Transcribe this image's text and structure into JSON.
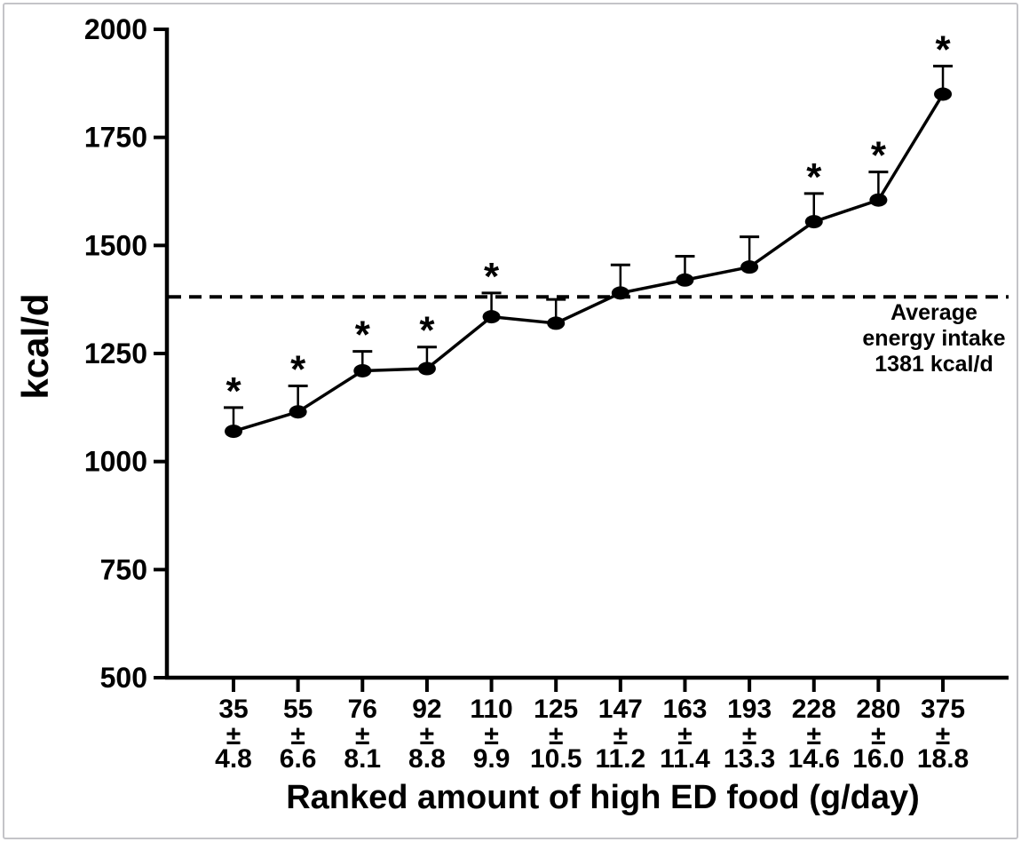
{
  "chart_data": {
    "type": "line",
    "title": "",
    "xlabel": "Ranked amount of high ED food (g/day)",
    "ylabel": "kcal/d",
    "ylim": [
      500,
      2000
    ],
    "y_ticks": [
      2000,
      1750,
      1500,
      1250,
      1000,
      750,
      500
    ],
    "grid": false,
    "legend": "none",
    "color": "#000000",
    "marker": "filled-ellipse",
    "error_bars": "upper-only",
    "significance_symbol": "*",
    "reference_line": {
      "value": 1381,
      "style": "dashed",
      "label_lines": [
        "Average",
        "energy intake",
        "1381 kcal/d"
      ]
    },
    "x_tick_format": [
      "amount",
      "plus-minus",
      "sem"
    ],
    "plus_minus_symbol": "±",
    "points": [
      {
        "amount": "35",
        "sem": "4.8",
        "kcal": 1070,
        "err_up": 55,
        "significant": true
      },
      {
        "amount": "55",
        "sem": "6.6",
        "kcal": 1115,
        "err_up": 60,
        "significant": true
      },
      {
        "amount": "76",
        "sem": "8.1",
        "kcal": 1210,
        "err_up": 45,
        "significant": true
      },
      {
        "amount": "92",
        "sem": "8.8",
        "kcal": 1215,
        "err_up": 50,
        "significant": true
      },
      {
        "amount": "110",
        "sem": "9.9",
        "kcal": 1335,
        "err_up": 55,
        "significant": true
      },
      {
        "amount": "125",
        "sem": "10.5",
        "kcal": 1320,
        "err_up": 55,
        "significant": false
      },
      {
        "amount": "147",
        "sem": "11.2",
        "kcal": 1390,
        "err_up": 65,
        "significant": false
      },
      {
        "amount": "163",
        "sem": "11.4",
        "kcal": 1420,
        "err_up": 55,
        "significant": false
      },
      {
        "amount": "193",
        "sem": "13.3",
        "kcal": 1450,
        "err_up": 70,
        "significant": false
      },
      {
        "amount": "228",
        "sem": "14.6",
        "kcal": 1555,
        "err_up": 65,
        "significant": true
      },
      {
        "amount": "280",
        "sem": "16.0",
        "kcal": 1605,
        "err_up": 65,
        "significant": true
      },
      {
        "amount": "375",
        "sem": "18.8",
        "kcal": 1850,
        "err_up": 65,
        "significant": true
      }
    ]
  }
}
